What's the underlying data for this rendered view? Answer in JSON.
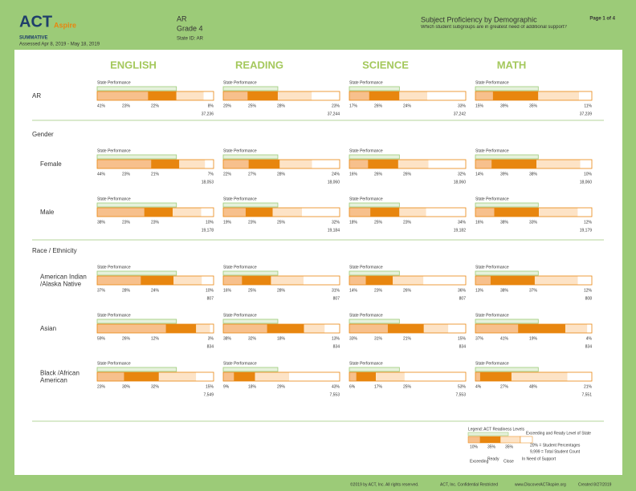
{
  "header": {
    "brand": "ACT",
    "brand_sub": "Aspire",
    "summative": "SUMMATIVE",
    "assessed": "Assessed Apr 8, 2019 - May 18, 2019",
    "state": "AR",
    "grade": "Grade 4",
    "state_id": "State ID: AR",
    "title": "Subject Proficiency by Demographic",
    "question": "Which student subgroups are in greatest need of additional support?",
    "page": "Page 1 of 4"
  },
  "subjects": [
    "ENGLISH",
    "READING",
    "SCIENCE",
    "MATH"
  ],
  "state_label": "State Performance",
  "segment_colors": [
    "#f7c08c",
    "#e8860f",
    "#fde3c6",
    "#ffffff"
  ],
  "overall": {
    "label": [
      "AR"
    ],
    "cells": [
      {
        "values": [
          41,
          23,
          22,
          8
        ],
        "value_labels": [
          "41%",
          "23%",
          "22%",
          "8%"
        ],
        "count": "37,236"
      },
      {
        "values": [
          20,
          25,
          28,
          23
        ],
        "value_labels": [
          "20%",
          "25%",
          "28%",
          "23%"
        ],
        "count": "37,244"
      },
      {
        "values": [
          17,
          26,
          24,
          33
        ],
        "value_labels": [
          "17%",
          "26%",
          "24%",
          "33%"
        ],
        "count": "37,242"
      },
      {
        "values": [
          15,
          39,
          35,
          11
        ],
        "value_labels": [
          "15%",
          "39%",
          "35%",
          "11%"
        ],
        "count": "37,239"
      }
    ]
  },
  "groups": [
    {
      "heading": "Gender",
      "rows": [
        {
          "label": [
            "Female"
          ],
          "cells": [
            {
              "values": [
                44,
                23,
                21,
                7
              ],
              "value_labels": [
                "44%",
                "23%",
                "21%",
                "7%"
              ],
              "count": "18,053"
            },
            {
              "values": [
                22,
                27,
                28,
                24
              ],
              "value_labels": [
                "22%",
                "27%",
                "28%",
                "24%"
              ],
              "count": "18,060"
            },
            {
              "values": [
                16,
                26,
                26,
                32
              ],
              "value_labels": [
                "16%",
                "26%",
                "26%",
                "32%"
              ],
              "count": "18,060"
            },
            {
              "values": [
                14,
                39,
                38,
                10
              ],
              "value_labels": [
                "14%",
                "39%",
                "38%",
                "10%"
              ],
              "count": "18,060"
            }
          ]
        },
        {
          "label": [
            "Male"
          ],
          "cells": [
            {
              "values": [
                38,
                23,
                23,
                10
              ],
              "value_labels": [
                "38%",
                "23%",
                "23%",
                "10%"
              ],
              "count": "19,178"
            },
            {
              "values": [
                19,
                23,
                25,
                32
              ],
              "value_labels": [
                "19%",
                "23%",
                "25%",
                "32%"
              ],
              "count": "19,184"
            },
            {
              "values": [
                18,
                25,
                23,
                34
              ],
              "value_labels": [
                "18%",
                "25%",
                "23%",
                "34%"
              ],
              "count": "19,182"
            },
            {
              "values": [
                16,
                38,
                33,
                12
              ],
              "value_labels": [
                "16%",
                "38%",
                "33%",
                "12%"
              ],
              "count": "19,179"
            }
          ]
        }
      ]
    },
    {
      "heading": "Race / Ethnicity",
      "rows": [
        {
          "label": [
            "American Indian",
            "/Alaska Native"
          ],
          "cells": [
            {
              "values": [
                37,
                28,
                24,
                10
              ],
              "value_labels": [
                "37%",
                "28%",
                "24%",
                "10%"
              ],
              "count": "807"
            },
            {
              "values": [
                16,
                25,
                28,
                31
              ],
              "value_labels": [
                "16%",
                "25%",
                "28%",
                "31%"
              ],
              "count": "807"
            },
            {
              "values": [
                14,
                23,
                26,
                36
              ],
              "value_labels": [
                "14%",
                "23%",
                "26%",
                "36%"
              ],
              "count": "807"
            },
            {
              "values": [
                13,
                38,
                37,
                12
              ],
              "value_labels": [
                "13%",
                "38%",
                "37%",
                "12%"
              ],
              "count": "808"
            }
          ]
        },
        {
          "label": [
            "Asian"
          ],
          "cells": [
            {
              "values": [
                59,
                26,
                12,
                3
              ],
              "value_labels": [
                "59%",
                "26%",
                "12%",
                "3%"
              ],
              "count": "834"
            },
            {
              "values": [
                38,
                32,
                18,
                13
              ],
              "value_labels": [
                "38%",
                "32%",
                "18%",
                "13%"
              ],
              "count": "834"
            },
            {
              "values": [
                33,
                31,
                21,
                15
              ],
              "value_labels": [
                "33%",
                "31%",
                "21%",
                "15%"
              ],
              "count": "834"
            },
            {
              "values": [
                37,
                41,
                19,
                4
              ],
              "value_labels": [
                "37%",
                "41%",
                "19%",
                "4%"
              ],
              "count": "834"
            }
          ]
        },
        {
          "label": [
            "Black /African",
            "American"
          ],
          "cells": [
            {
              "values": [
                23,
                30,
                32,
                15
              ],
              "value_labels": [
                "23%",
                "30%",
                "32%",
                "15%"
              ],
              "count": "7,549"
            },
            {
              "values": [
                9,
                18,
                29,
                43
              ],
              "value_labels": [
                "9%",
                "18%",
                "29%",
                "43%"
              ],
              "count": "7,553"
            },
            {
              "values": [
                6,
                17,
                25,
                53
              ],
              "value_labels": [
                "6%",
                "17%",
                "25%",
                "53%"
              ],
              "count": "7,553"
            },
            {
              "values": [
                4,
                27,
                48,
                21
              ],
              "value_labels": [
                "4%",
                "27%",
                "48%",
                "21%"
              ],
              "count": "7,551"
            }
          ]
        }
      ]
    }
  ],
  "legend": {
    "title": "Legend: ACT Readiness Levels",
    "state_note": "Exceeding and Ready Level of State",
    "sample": [
      "10%",
      "35%",
      "35%"
    ],
    "pct_note": "20% = Student Percentages",
    "count_note": "9,999 = Total Student Count",
    "levels": [
      "Exceeding",
      "Ready",
      "Close",
      "In Need of Support"
    ]
  },
  "footer": {
    "copyright": "©2019 by ACT, Inc. All rights reserved.",
    "confidential": "ACT, Inc. Confidential Restricted",
    "url": "www.DiscoverACTAspire.org",
    "created": "Created 8/27/2019"
  }
}
